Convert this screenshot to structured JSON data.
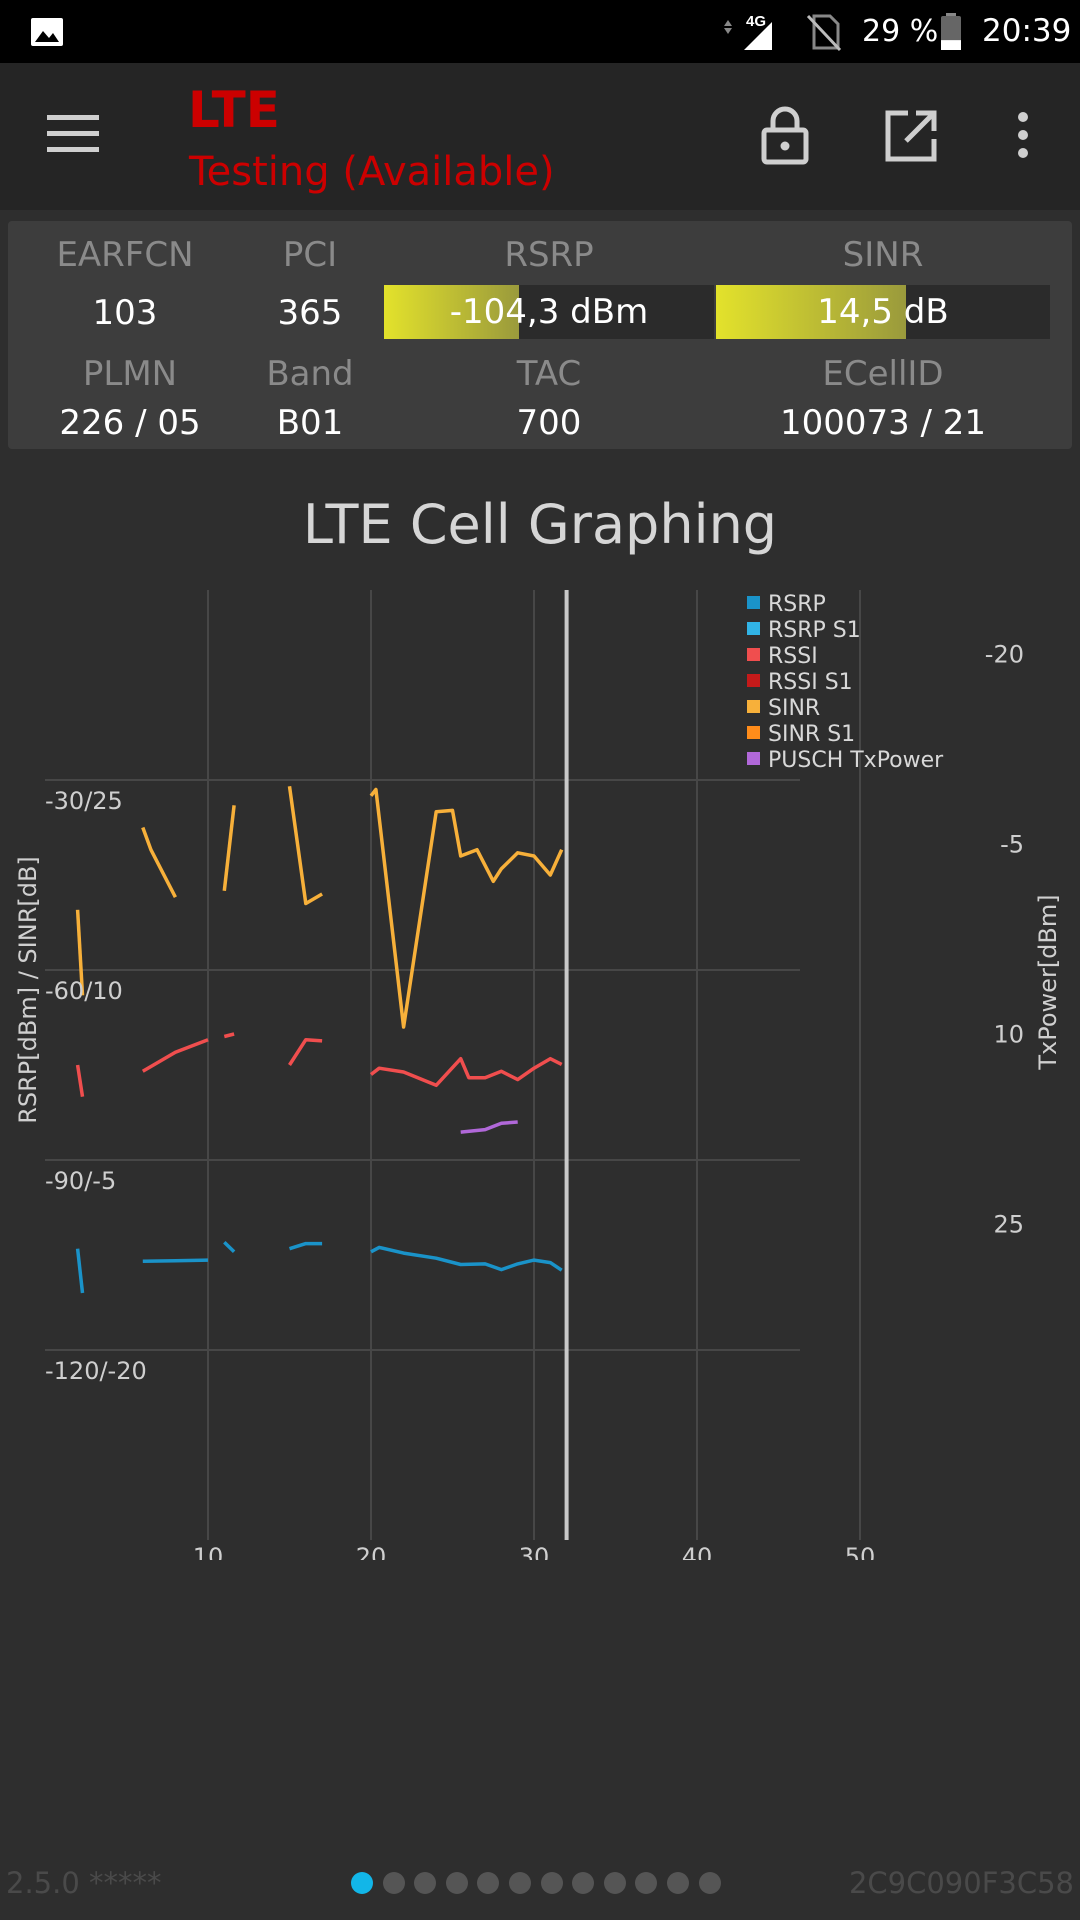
{
  "status_bar": {
    "network_type": "4G",
    "battery_percent": "29 %",
    "battery_level": 0.29,
    "time": "20:39",
    "icons": [
      "gallery-icon",
      "signal-icon",
      "no-sim-icon",
      "battery-icon"
    ]
  },
  "toolbar": {
    "title": "LTE",
    "subtitle": "Testing (Available)",
    "icons": [
      "menu-icon",
      "lock-icon",
      "open-external-icon",
      "more-vert-icon"
    ],
    "accent_color": "#cc0000"
  },
  "cell_info": {
    "earfcn_label": "EARFCN",
    "earfcn": "103",
    "pci_label": "PCI",
    "pci": "365",
    "rsrp_label": "RSRP",
    "rsrp": "-104,3 dBm",
    "rsrp_fill": 0.41,
    "sinr_label": "SINR",
    "sinr": "14,5 dB",
    "sinr_fill": 0.57,
    "plmn_label": "PLMN",
    "plmn": "226 / 05",
    "band_label": "Band",
    "band": "B01",
    "tac_label": "TAC",
    "tac": "700",
    "ecellid_label": "ECellID",
    "ecellid": "100073 / 21"
  },
  "chart_title": "LTE Cell Graphing",
  "chart_data": {
    "type": "line",
    "title": "LTE Cell Graphing",
    "xlabel": "",
    "ylabel_left": "RSRP[dBm] / SINR[dB]",
    "ylabel_right": "TxPower[dBm]",
    "x_ticks": [
      "10",
      "20",
      "30",
      "40",
      "50"
    ],
    "xlim": [
      0,
      55
    ],
    "left_ticks": [
      "-30/25",
      "-60/10",
      "-90/-5",
      "-120/-20"
    ],
    "left_tick_values": [
      -30,
      -60,
      -90,
      -120
    ],
    "ylim_rsrp": [
      -150,
      0
    ],
    "right_ticks": [
      "-20",
      "-5",
      "10",
      "25"
    ],
    "right_tick_values": [
      -20,
      -5,
      10,
      25
    ],
    "grid": true,
    "legend_position": "top-right",
    "cursor_x": 32,
    "series": [
      {
        "name": "RSRP",
        "color": "#1a93c9",
        "segments": [
          [
            [
              2.0,
              -104
            ],
            [
              2.3,
              -111
            ]
          ],
          [
            [
              6,
              -106
            ],
            [
              8,
              -105.9
            ],
            [
              10,
              -105.8
            ]
          ],
          [
            [
              11,
              -103
            ],
            [
              11.6,
              -104.5
            ]
          ],
          [
            [
              15,
              -104
            ],
            [
              16,
              -103.2
            ],
            [
              17,
              -103.2
            ]
          ],
          [
            [
              20,
              -104.5
            ],
            [
              20.5,
              -103.8
            ],
            [
              22,
              -104.7
            ],
            [
              24,
              -105.5
            ],
            [
              25.5,
              -106.5
            ],
            [
              27,
              -106.4
            ],
            [
              28,
              -107.3
            ],
            [
              29,
              -106.4
            ],
            [
              30,
              -105.8
            ],
            [
              31,
              -106.2
            ],
            [
              31.7,
              -107.4
            ]
          ]
        ]
      },
      {
        "name": "RSRP S1",
        "color": "#31b4e6",
        "segments": []
      },
      {
        "name": "RSSI",
        "color": "#f04e4e",
        "segments": [
          [
            [
              2.0,
              -75
            ],
            [
              2.3,
              -80
            ]
          ],
          [
            [
              6,
              -76
            ],
            [
              8,
              -73
            ],
            [
              10,
              -71
            ]
          ],
          [
            [
              11,
              -70.5
            ],
            [
              11.6,
              -70.1
            ]
          ],
          [
            [
              15,
              -75
            ],
            [
              16,
              -71
            ],
            [
              17,
              -71.2
            ]
          ],
          [
            [
              20,
              -76.5
            ],
            [
              20.5,
              -75.5
            ],
            [
              22,
              -76.1
            ],
            [
              24,
              -78.2
            ],
            [
              25.5,
              -74
            ],
            [
              26,
              -77
            ],
            [
              27,
              -77
            ],
            [
              28,
              -76
            ],
            [
              29,
              -77.3
            ],
            [
              30,
              -75.5
            ],
            [
              31,
              -74
            ],
            [
              31.7,
              -74.9
            ]
          ]
        ]
      },
      {
        "name": "RSSI S1",
        "color": "#c51a1a",
        "segments": []
      },
      {
        "name": "SINR",
        "color": "#f7b03a",
        "segments": [
          [
            [
              2.0,
              -50.5
            ],
            [
              2.3,
              -64
            ]
          ],
          [
            [
              6,
              -37.5
            ],
            [
              6.5,
              -41
            ],
            [
              8,
              -48.5
            ]
          ],
          [
            [
              11,
              -47.5
            ],
            [
              11.6,
              -34
            ]
          ],
          [
            [
              15,
              -31
            ],
            [
              16,
              -49.5
            ],
            [
              17,
              -48
            ]
          ],
          [
            [
              20,
              -32.5
            ],
            [
              20.3,
              -31.5
            ],
            [
              22,
              -69
            ],
            [
              24,
              -35
            ],
            [
              25,
              -34.8
            ],
            [
              25.5,
              -42
            ],
            [
              26.5,
              -41
            ],
            [
              27.5,
              -46
            ],
            [
              28,
              -44
            ],
            [
              29,
              -41.5
            ],
            [
              30,
              -42
            ],
            [
              31,
              -45
            ],
            [
              31.7,
              -41
            ]
          ]
        ]
      },
      {
        "name": "SINR S1",
        "color": "#ff8c1a",
        "segments": []
      },
      {
        "name": "PUSCH TxPower",
        "color": "#b168d9",
        "segments": [
          [
            [
              25.5,
              17.8
            ],
            [
              27,
              17.6
            ],
            [
              28,
              17.1
            ],
            [
              29,
              17.0
            ]
          ]
        ]
      }
    ]
  },
  "footer": {
    "version": "2.5.0 *****",
    "device_id": "2C9C090F3C58",
    "page_count": 12,
    "active_page": 0
  }
}
